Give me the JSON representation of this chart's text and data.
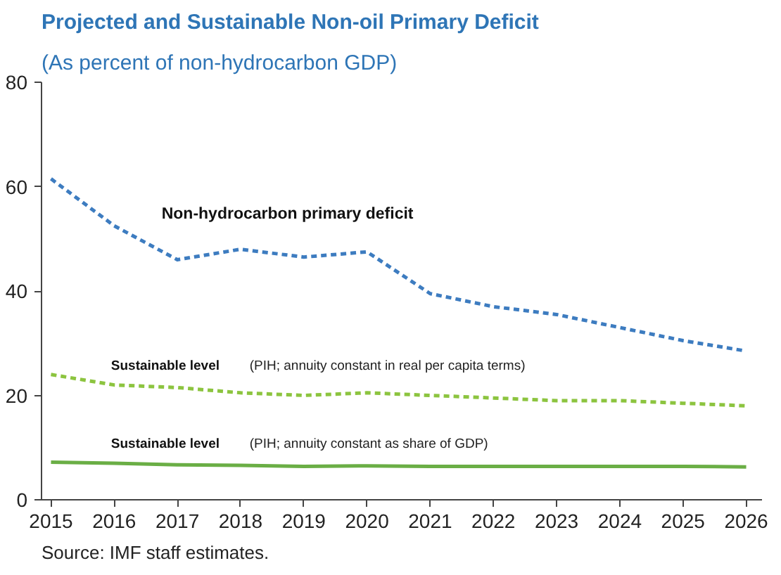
{
  "chart_data": {
    "type": "line",
    "title": "Projected and Sustainable Non-oil Primary Deficit",
    "subtitle": "(As percent of non-hydrocarbon GDP)",
    "categories": [
      "2015",
      "2016",
      "2017",
      "2018",
      "2019",
      "2020",
      "2021",
      "2022",
      "2023",
      "2024",
      "2025",
      "2026"
    ],
    "series": [
      {
        "name": "Non-hydrocarbon primary deficit",
        "color": "#3d7cc0",
        "line_style": "dashed",
        "values": [
          61.5,
          52.5,
          46,
          48,
          46.5,
          47.5,
          39.5,
          37,
          35.5,
          33,
          30.5,
          28.5
        ]
      },
      {
        "name": "Sustainable level",
        "color": "#8cc43f",
        "line_style": "dashed",
        "values": [
          24,
          22,
          21.5,
          20.5,
          20,
          20.5,
          20,
          19.5,
          19,
          19,
          18.5,
          18
        ]
      },
      {
        "name": "Sustainable level",
        "color": "#6aae45",
        "line_style": "solid",
        "values": [
          7.2,
          7,
          6.7,
          6.6,
          6.4,
          6.5,
          6.4,
          6.4,
          6.4,
          6.4,
          6.4,
          6.3
        ]
      }
    ],
    "annotations": [
      "(PIH; annuity constant in real per capita terms)",
      "(PIH; annuity constant as share of GDP)",
      "Source: IMF staff estimates."
    ],
    "ylim": [
      0,
      80
    ],
    "yticks": [
      0,
      20,
      40,
      60,
      80
    ],
    "grid": false,
    "marker": "none"
  }
}
